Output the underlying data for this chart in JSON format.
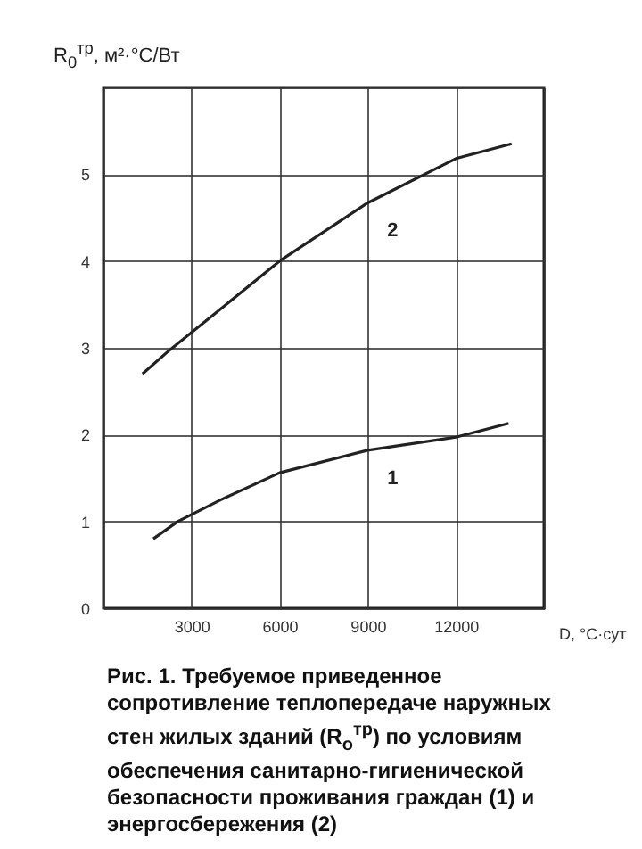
{
  "chart_data": {
    "type": "line",
    "xlabel": "D, °C·сут",
    "ylabel": "R$_{0}$$^{тр}$, м²·°С/Вт",
    "series": [
      {
        "name": "2",
        "color": "#222222",
        "x": [
          1330,
          2240,
          4000,
          6000,
          9000,
          12000,
          13900
        ],
        "values": [
          2.7,
          2.97,
          3.45,
          4.0,
          4.67,
          5.18,
          5.35
        ]
      },
      {
        "name": "1",
        "color": "#222222",
        "x": [
          1700,
          2540,
          4000,
          6000,
          9000,
          12000,
          13800
        ],
        "values": [
          0.8,
          1.0,
          1.25,
          1.56,
          1.82,
          1.97,
          2.13
        ]
      }
    ],
    "xlim": [
      0,
      15000
    ],
    "xticks": [
      {
        "value": 0,
        "label": null
      },
      3000,
      6000,
      9000,
      12000,
      {
        "value": 15000,
        "label": null
      }
    ],
    "ylim": [
      0,
      6
    ],
    "yticks": [
      0,
      1,
      2,
      3,
      4,
      5,
      {
        "value": 6,
        "label": null
      }
    ],
    "grid": true,
    "marker": "none",
    "line_style": "solid",
    "annotations": [
      "Рис. 1. Требуемое приведенное сопротивление теплопередаче наружных стен жилых зданий (R$_{о}$$^{тр}$) по условиям обеспечения санитарно-гигиенической безопасности проживания граждан (1) и энергосбережения (2)"
    ]
  }
}
